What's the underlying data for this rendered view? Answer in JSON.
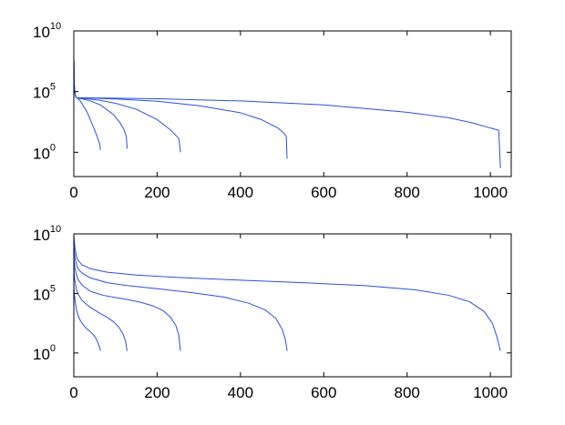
{
  "chart_data": [
    {
      "type": "line",
      "title": "",
      "xlabel": "",
      "ylabel": "",
      "xlim": [
        0,
        1050
      ],
      "ylim": [
        0.01,
        10000000000.0
      ],
      "yscale": "log",
      "grid": false,
      "xticks": [
        {
          "value": 0,
          "label": "0"
        },
        {
          "value": 200,
          "label": "200"
        },
        {
          "value": 400,
          "label": "400"
        },
        {
          "value": 600,
          "label": "600"
        },
        {
          "value": 800,
          "label": "800"
        },
        {
          "value": 1000,
          "label": "1000"
        }
      ],
      "yticks": [
        {
          "value": 1,
          "base": "10",
          "exp": "0"
        },
        {
          "value": 100000,
          "base": "10",
          "exp": "5"
        },
        {
          "value": 10000000000,
          "base": "10",
          "exp": "10"
        }
      ],
      "color": "#2a4fe6",
      "series": [
        {
          "x": [
            0,
            1,
            2,
            4,
            8,
            16,
            32,
            48,
            56,
            62,
            64
          ],
          "y": [
            50000000,
            400000,
            120000,
            40000,
            30000,
            16000,
            2000,
            100,
            20,
            5,
            1.5
          ]
        },
        {
          "x": [
            0,
            1,
            2,
            4,
            8,
            20,
            40,
            64,
            96,
            110,
            120,
            126,
            128
          ],
          "y": [
            50000000,
            400000,
            120000,
            40000,
            30000,
            25000,
            17000,
            8000,
            1200,
            300,
            80,
            20,
            2
          ]
        },
        {
          "x": [
            0,
            1,
            2,
            4,
            8,
            20,
            60,
            100,
            150,
            200,
            230,
            245,
            252,
            253,
            256
          ],
          "y": [
            50000000,
            400000,
            120000,
            40000,
            30000,
            28000,
            20000,
            11000,
            3500,
            500,
            80,
            25,
            14,
            8,
            1
          ]
        },
        {
          "x": [
            0,
            1,
            2,
            4,
            8,
            30,
            100,
            200,
            300,
            400,
            450,
            490,
            505,
            508,
            510,
            512
          ],
          "y": [
            50000000,
            400000,
            120000,
            40000,
            30000,
            30000,
            25000,
            16000,
            7000,
            1800,
            500,
            100,
            35,
            25,
            20,
            0.3
          ]
        },
        {
          "x": [
            0,
            1,
            2,
            4,
            8,
            50,
            200,
            400,
            600,
            800,
            900,
            960,
            1000,
            1017,
            1020,
            1022,
            1024
          ],
          "y": [
            50000000,
            400000,
            120000,
            40000,
            30000,
            30000,
            26000,
            17000,
            8000,
            2000,
            700,
            250,
            100,
            70,
            60,
            2,
            0.05
          ]
        }
      ]
    },
    {
      "type": "line",
      "title": "",
      "xlabel": "",
      "ylabel": "",
      "xlim": [
        0,
        1050
      ],
      "ylim": [
        0.01,
        10000000000.0
      ],
      "yscale": "log",
      "grid": false,
      "xticks": [
        {
          "value": 0,
          "label": "0"
        },
        {
          "value": 200,
          "label": "200"
        },
        {
          "value": 400,
          "label": "400"
        },
        {
          "value": 600,
          "label": "600"
        },
        {
          "value": 800,
          "label": "800"
        },
        {
          "value": 1000,
          "label": "1000"
        }
      ],
      "yticks": [
        {
          "value": 1,
          "base": "10",
          "exp": "0"
        },
        {
          "value": 100000,
          "base": "10",
          "exp": "5"
        },
        {
          "value": 10000000000,
          "base": "10",
          "exp": "10"
        }
      ],
      "color": "#2a4fe6",
      "series": [
        {
          "x": [
            0,
            1,
            3,
            6,
            10,
            16,
            24,
            32,
            40,
            48,
            54,
            58,
            62,
            64
          ],
          "y": [
            600000,
            100000,
            25000,
            5000,
            1500,
            500,
            200,
            100,
            60,
            30,
            15,
            7,
            3,
            1.5
          ]
        },
        {
          "x": [
            0,
            1,
            3,
            6,
            10,
            20,
            35,
            50,
            64,
            80,
            96,
            108,
            118,
            124,
            128
          ],
          "y": [
            25000000,
            4000000,
            900000,
            250000,
            90000,
            25000,
            9000,
            4000,
            2000,
            1000,
            400,
            150,
            40,
            10,
            1.5
          ]
        },
        {
          "x": [
            0,
            1,
            3,
            6,
            10,
            20,
            40,
            70,
            100,
            130,
            160,
            190,
            215,
            232,
            245,
            252,
            256
          ],
          "y": [
            200000000,
            50000000,
            12000000,
            4000000,
            1500000,
            500000,
            150000,
            70000,
            45000,
            30000,
            18000,
            9000,
            3500,
            1000,
            200,
            30,
            1.5
          ]
        },
        {
          "x": [
            0,
            1,
            3,
            6,
            10,
            20,
            40,
            80,
            130,
            200,
            280,
            360,
            420,
            460,
            485,
            500,
            508,
            512
          ],
          "y": [
            1500000000,
            400000000,
            100000000,
            30000000,
            12000000,
            5000000,
            2000000,
            800000,
            450000,
            250000,
            120000,
            50000,
            15000,
            4000,
            800,
            100,
            12,
            1.5
          ]
        },
        {
          "x": [
            0,
            1,
            3,
            6,
            10,
            20,
            40,
            80,
            150,
            250,
            400,
            550,
            700,
            820,
            900,
            950,
            985,
            1005,
            1016,
            1024
          ],
          "y": [
            8000000000,
            2500000000,
            600000000,
            150000000,
            60000000,
            25000000,
            12000000,
            6000000,
            3500000,
            2200000,
            1300000,
            800000,
            450000,
            200000,
            70000,
            20000,
            3000,
            300,
            20,
            1.5
          ]
        }
      ]
    }
  ]
}
